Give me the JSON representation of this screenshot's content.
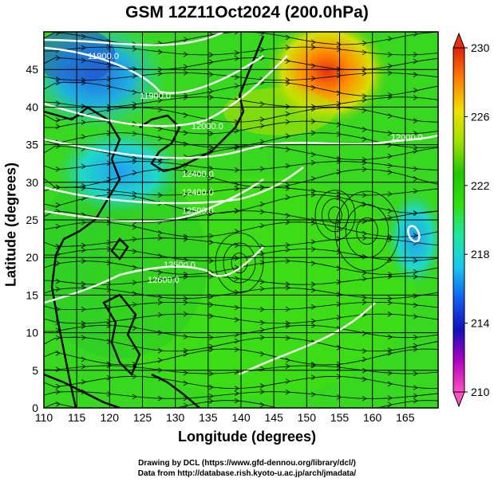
{
  "title": "GSM 12Z11Oct2024 (200.0hPa)",
  "axes": {
    "x_label": "Longitude (degrees)",
    "y_label": "Latitude  (degrees)",
    "x_ticks": [
      "110",
      "115",
      "120",
      "125",
      "130",
      "135",
      "140",
      "145",
      "150",
      "155",
      "160",
      "165"
    ],
    "y_ticks": [
      "0",
      "5",
      "10",
      "15",
      "20",
      "25",
      "30",
      "35",
      "40",
      "45"
    ]
  },
  "colorbar": {
    "ticks": [
      "230",
      "226",
      "222",
      "218",
      "214",
      "210"
    ],
    "gradient": [
      "#ff50c0",
      "#b000c0",
      "#1010c0",
      "#1060f0",
      "#18c8f0",
      "#20e8a0",
      "#30e010",
      "#20c800",
      "#a0e000",
      "#f0e000",
      "#ff8000",
      "#e02010"
    ]
  },
  "contour_labels": [
    "11900.0",
    "11900.0",
    "12000.0",
    "12000.0",
    "12400.0",
    "12400.0",
    "12500.0",
    "12500.0",
    "12600.0"
  ],
  "credits": {
    "line1": "Drawing by DCL (https://www.gfd-dennou.org/library/dcl/)",
    "line2": "Data from http://database.rish.kyoto-u.ac.jp/arch/jmadata/"
  },
  "colors": {
    "land": "#000000",
    "grid": "#000000",
    "contour": "#ffffff"
  }
}
